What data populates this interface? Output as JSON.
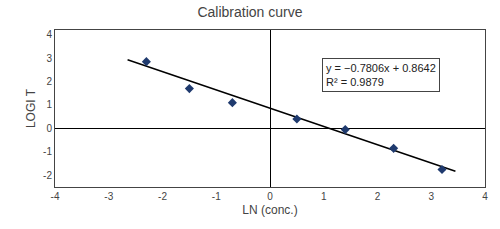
{
  "chart_data": {
    "type": "scatter",
    "title": "Calibration curve",
    "xlabel": "LN (conc.)",
    "ylabel": "LOGI T",
    "series": [
      {
        "type": "line",
        "color": "#000000",
        "line_style": "solid",
        "x": [
          -2.65,
          3.45
        ],
        "values": [
          2.93279,
          -1.82887
        ]
      },
      {
        "type": "scatter",
        "color": "#1f3a6e",
        "marker": "diamond",
        "x": [
          -2.3,
          -1.5,
          -0.7,
          0.5,
          1.4,
          2.3,
          3.2
        ],
        "values": [
          2.85,
          1.7,
          1.1,
          0.4,
          -0.05,
          -0.85,
          -1.75
        ]
      }
    ],
    "xlim": [
      -4,
      4
    ],
    "ylim": [
      -2.5,
      4.2
    ],
    "xticks": [
      -4,
      -3,
      -2,
      -1,
      0,
      1,
      2,
      3,
      4
    ],
    "yticks": [
      -2,
      -1,
      0,
      1,
      2,
      3,
      4
    ],
    "annotations": [
      [
        "y = −0.7806x + 0.8642",
        "R² = 0.9879"
      ]
    ],
    "grid": false
  }
}
